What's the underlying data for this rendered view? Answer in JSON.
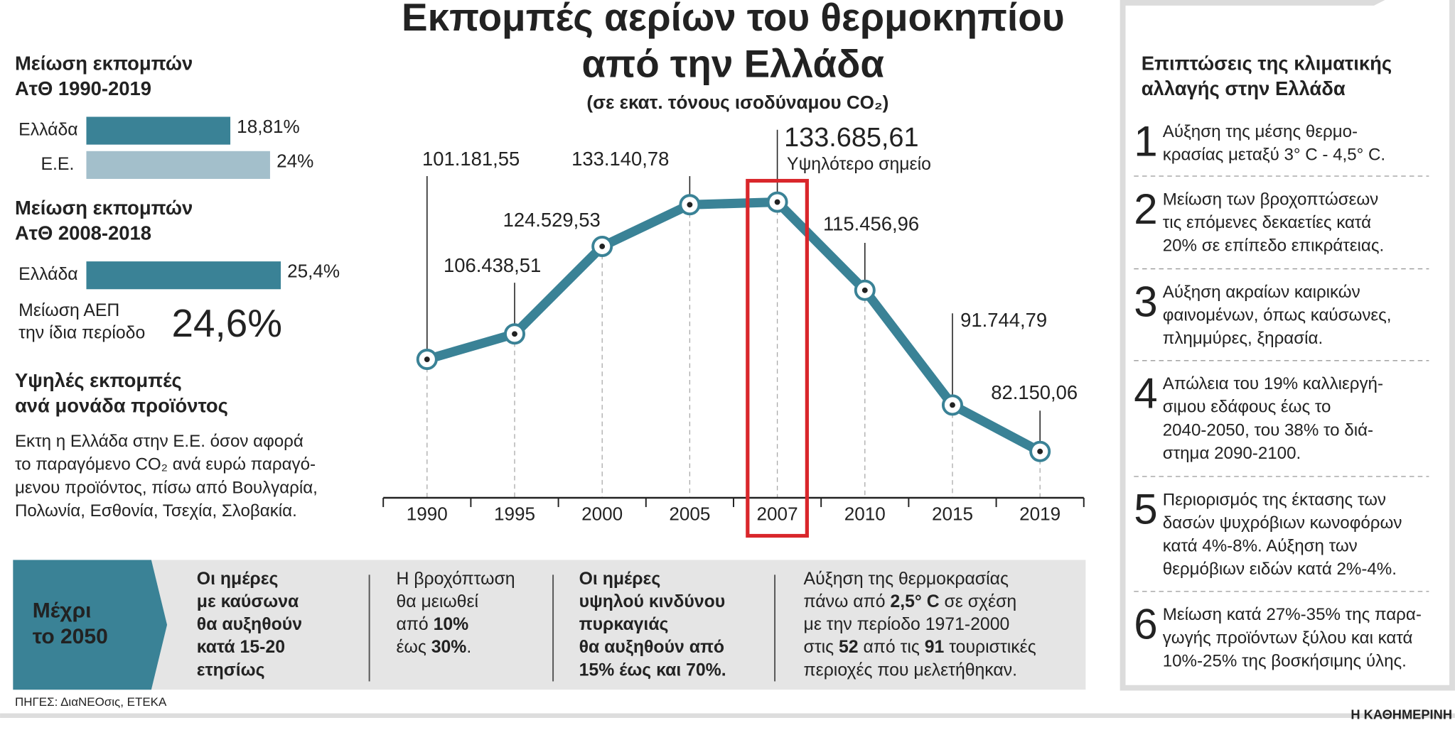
{
  "chart_data": {
    "type": "line",
    "title": [
      "Εκπομπές αερίων του θερμοκηπίου",
      "από την Ελλάδα"
    ],
    "subtitle": "(σε εκατ. τόνους ισοδύναμου CO₂)",
    "categories": [
      "1990",
      "1995",
      "2000",
      "2005",
      "2007",
      "2010",
      "2015",
      "2019"
    ],
    "values": [
      101181.55,
      106438.51,
      124529.53,
      133140.78,
      133685.61,
      115456.96,
      91744.79,
      82150.06
    ],
    "value_labels": [
      "101.181,55",
      "106.438,51",
      "124.529,53",
      "133.140,78",
      "133.685,61",
      "115.456,96",
      "91.744,79",
      "82.150,06"
    ],
    "annotation": "Υψηλότερο σημείο",
    "color": "#3a8296"
  },
  "left": {
    "sections": [
      {
        "title": [
          "Μείωση εκπομπών",
          "ΑτΘ 1990-2019"
        ],
        "bars": [
          {
            "label": "Ελλάδα",
            "value": 18.81,
            "value_label": "18,81%",
            "color": "#3a8296"
          },
          {
            "label": "Ε.Ε.",
            "value": 24,
            "value_label": "24%",
            "color": "#a3bfcb"
          }
        ]
      },
      {
        "title": [
          "Μείωση εκπομπών",
          "ΑτΘ 2008-2018"
        ],
        "bars": [
          {
            "label": "Ελλάδα",
            "value": 25.4,
            "value_label": "25,4%",
            "color": "#3a8296"
          }
        ],
        "note": [
          "Μείωση ΑΕΠ",
          "την ίδια περίοδο"
        ],
        "note_value": "24,6%"
      },
      {
        "title": [
          "Υψηλές εκπομπές",
          "ανά μονάδα προϊόντος"
        ],
        "text": [
          "Εκτη η Ελλάδα στην Ε.Ε. όσον αφορά",
          "το παραγόμενο CO₂ ανά ευρώ παραγό-",
          "μενου προϊόντος, πίσω από Βουλγαρία,",
          "Πολωνία, Εσθονία, Τσεχία, Σλοβακία."
        ]
      }
    ]
  },
  "bottom": {
    "label": [
      "Μέχρι",
      "το 2050"
    ],
    "columns": [
      [
        [
          {
            "t": "Οι ημέρες",
            "b": true
          }
        ],
        [
          {
            "t": "με καύσωνα",
            "b": true
          }
        ],
        [
          {
            "t": "θα αυξηθούν",
            "b": true
          }
        ],
        [
          {
            "t": "κατά 15-20",
            "b": true
          }
        ],
        [
          {
            "t": "ετησίως",
            "b": true
          }
        ]
      ],
      [
        [
          {
            "t": "Η βροχόπτωση"
          }
        ],
        [
          {
            "t": "θα μειωθεί"
          }
        ],
        [
          {
            "t": "από "
          },
          {
            "t": "10%",
            "b": true
          }
        ],
        [
          {
            "t": "έως "
          },
          {
            "t": "30%",
            "b": true
          },
          {
            "t": "."
          }
        ]
      ],
      [
        [
          {
            "t": "Οι ημέρες",
            "b": true
          }
        ],
        [
          {
            "t": "υψηλού κινδύνου",
            "b": true
          }
        ],
        [
          {
            "t": "πυρκαγιάς",
            "b": true
          }
        ],
        [
          {
            "t": "θα αυξηθούν από",
            "b": true
          }
        ],
        [
          {
            "t": "15% έως και 70%.",
            "b": true
          }
        ]
      ],
      [
        [
          {
            "t": "Αύξηση της θερμοκρασίας"
          }
        ],
        [
          {
            "t": "πάνω από "
          },
          {
            "t": "2,5° C",
            "b": true
          },
          {
            "t": " σε σχέση"
          }
        ],
        [
          {
            "t": "με την περίοδο 1971-2000"
          }
        ],
        [
          {
            "t": "στις "
          },
          {
            "t": "52",
            "b": true
          },
          {
            "t": " από τις "
          },
          {
            "t": "91",
            "b": true
          },
          {
            "t": " τουριστικές"
          }
        ],
        [
          {
            "t": "περιοχές που μελετήθηκαν."
          }
        ]
      ]
    ]
  },
  "right": {
    "title": [
      "Επιπτώσεις της κλιματικής",
      "αλλαγής στην Ελλάδα"
    ],
    "items": [
      {
        "num": "1",
        "lines": [
          "Αύξηση της μέσης θερμο-",
          "κρασίας μεταξύ 3° C - 4,5° C."
        ]
      },
      {
        "num": "2",
        "lines": [
          "Μείωση των βροχοπτώσεων",
          "τις επόμενες δεκαετίες κατά",
          "20% σε επίπεδο επικράτειας."
        ]
      },
      {
        "num": "3",
        "lines": [
          "Αύξηση ακραίων καιρικών",
          "φαινομένων, όπως καύσωνες,",
          "πλημμύρες, ξηρασία."
        ]
      },
      {
        "num": "4",
        "lines": [
          "Απώλεια του 19% καλλιεργή-",
          "σιμου εδάφους έως το",
          "2040-2050, του 38% το διά-",
          "στημα 2090-2100."
        ]
      },
      {
        "num": "5",
        "lines": [
          "Περιορισμός της έκτασης των",
          "δασών ψυχρόβιων κωνοφόρων",
          "κατά 4%-8%. Αύξηση των",
          "θερμόβιων ειδών κατά 2%-4%."
        ]
      },
      {
        "num": "6",
        "lines": [
          "Μείωση κατά 27%-35% της παρα-",
          "γωγής προϊόντων ξύλου και κατά",
          "10%-25% της βοσκήσιμης ύλης."
        ]
      }
    ]
  },
  "footer": {
    "source": "ΠΗΓΕΣ: ΔιαΝΕΟσις, ΕΤΕΚΑ",
    "brand": "Η ΚΑΘΗΜΕΡΙΝΗ"
  }
}
